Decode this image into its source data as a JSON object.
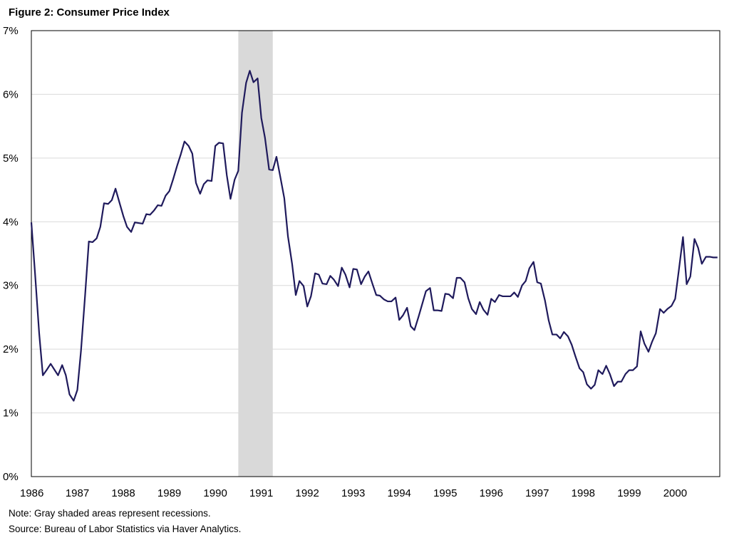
{
  "chart_data": {
    "type": "line",
    "title": "Figure 2: Consumer Price Index",
    "xlabel": "",
    "ylabel": "",
    "x_ticks": [
      "1986",
      "1987",
      "1988",
      "1989",
      "1990",
      "1991",
      "1992",
      "1993",
      "1994",
      "1995",
      "1996",
      "1997",
      "1998",
      "1999",
      "2000"
    ],
    "y_ticks": [
      "0%",
      "1%",
      "2%",
      "3%",
      "4%",
      "5%",
      "6%",
      "7%"
    ],
    "xlim": [
      1986.0,
      2000.97
    ],
    "ylim": [
      0,
      7
    ],
    "grid": true,
    "recessions": [
      {
        "start": 1990.5,
        "end": 1991.25
      }
    ],
    "series": [
      {
        "color": "#1f1a5c",
        "x": [
          1986.0,
          1986.08,
          1986.17,
          1986.25,
          1986.33,
          1986.42,
          1986.5,
          1986.58,
          1986.67,
          1986.75,
          1986.83,
          1986.92,
          1987.0,
          1987.08,
          1987.17,
          1987.25,
          1987.33,
          1987.42,
          1987.5,
          1987.58,
          1987.67,
          1987.75,
          1987.83,
          1987.92,
          1988.0,
          1988.08,
          1988.17,
          1988.25,
          1988.33,
          1988.42,
          1988.5,
          1988.58,
          1988.67,
          1988.75,
          1988.83,
          1988.92,
          1989.0,
          1989.08,
          1989.17,
          1989.25,
          1989.33,
          1989.42,
          1989.5,
          1989.58,
          1989.67,
          1989.75,
          1989.83,
          1989.92,
          1990.0,
          1990.08,
          1990.17,
          1990.25,
          1990.33,
          1990.42,
          1990.5,
          1990.58,
          1990.67,
          1990.75,
          1990.83,
          1990.92,
          1991.0,
          1991.08,
          1991.17,
          1991.25,
          1991.33,
          1991.42,
          1991.5,
          1991.58,
          1991.67,
          1991.75,
          1991.83,
          1991.92,
          1992.0,
          1992.08,
          1992.17,
          1992.25,
          1992.33,
          1992.42,
          1992.5,
          1992.58,
          1992.67,
          1992.75,
          1992.83,
          1992.92,
          1993.0,
          1993.08,
          1993.17,
          1993.25,
          1993.33,
          1993.42,
          1993.5,
          1993.58,
          1993.67,
          1993.75,
          1993.83,
          1993.92,
          1994.0,
          1994.08,
          1994.17,
          1994.25,
          1994.33,
          1994.42,
          1994.5,
          1994.58,
          1994.67,
          1994.75,
          1994.83,
          1994.92,
          1995.0,
          1995.08,
          1995.17,
          1995.25,
          1995.33,
          1995.42,
          1995.5,
          1995.58,
          1995.67,
          1995.75,
          1995.83,
          1995.92,
          1996.0,
          1996.08,
          1996.17,
          1996.25,
          1996.33,
          1996.42,
          1996.5,
          1996.58,
          1996.67,
          1996.75,
          1996.83,
          1996.92,
          1997.0,
          1997.08,
          1997.17,
          1997.25,
          1997.33,
          1997.42,
          1997.5,
          1997.58,
          1997.67,
          1997.75,
          1997.83,
          1997.92,
          1998.0,
          1998.08,
          1998.17,
          1998.25,
          1998.33,
          1998.42,
          1998.5,
          1998.58,
          1998.67,
          1998.75,
          1998.83,
          1998.92,
          1999.0,
          1999.08,
          1999.17,
          1999.25,
          1999.33,
          1999.42,
          1999.5,
          1999.58,
          1999.67,
          1999.75,
          1999.83,
          1999.92,
          2000.0,
          2000.08,
          2000.17,
          2000.25,
          2000.33,
          2000.42,
          2000.5,
          2000.58,
          2000.67,
          2000.75,
          2000.83,
          2000.92
        ],
        "values": [
          3.99,
          3.19,
          2.25,
          1.59,
          1.67,
          1.77,
          1.68,
          1.59,
          1.75,
          1.59,
          1.29,
          1.19,
          1.36,
          1.98,
          2.86,
          3.69,
          3.68,
          3.74,
          3.92,
          4.29,
          4.28,
          4.34,
          4.52,
          4.29,
          4.09,
          3.92,
          3.84,
          3.99,
          3.98,
          3.97,
          4.12,
          4.11,
          4.18,
          4.26,
          4.25,
          4.41,
          4.48,
          4.66,
          4.88,
          5.06,
          5.26,
          5.19,
          5.07,
          4.61,
          4.44,
          4.59,
          4.65,
          4.64,
          5.19,
          5.24,
          5.23,
          4.73,
          4.36,
          4.66,
          4.8,
          5.71,
          6.18,
          6.37,
          6.19,
          6.25,
          5.63,
          5.32,
          4.82,
          4.81,
          5.02,
          4.68,
          4.37,
          3.77,
          3.34,
          2.85,
          3.07,
          2.99,
          2.67,
          2.83,
          3.19,
          3.17,
          3.03,
          3.02,
          3.15,
          3.09,
          2.99,
          3.28,
          3.17,
          2.97,
          3.26,
          3.25,
          3.02,
          3.14,
          3.22,
          3.02,
          2.85,
          2.84,
          2.78,
          2.75,
          2.75,
          2.81,
          2.46,
          2.53,
          2.65,
          2.36,
          2.3,
          2.51,
          2.71,
          2.91,
          2.96,
          2.61,
          2.61,
          2.6,
          2.87,
          2.86,
          2.8,
          3.12,
          3.12,
          3.05,
          2.8,
          2.63,
          2.55,
          2.74,
          2.62,
          2.54,
          2.79,
          2.74,
          2.85,
          2.83,
          2.83,
          2.83,
          2.89,
          2.82,
          3.0,
          3.07,
          3.27,
          3.37,
          3.05,
          3.03,
          2.76,
          2.45,
          2.23,
          2.23,
          2.17,
          2.27,
          2.2,
          2.07,
          1.89,
          1.7,
          1.64,
          1.45,
          1.38,
          1.44,
          1.67,
          1.61,
          1.74,
          1.61,
          1.42,
          1.49,
          1.49,
          1.61,
          1.67,
          1.67,
          1.73,
          2.28,
          2.09,
          1.96,
          2.12,
          2.25,
          2.63,
          2.57,
          2.63,
          2.68,
          2.79,
          3.24,
          3.76,
          3.02,
          3.14,
          3.73,
          3.59,
          3.34,
          3.45,
          3.45,
          3.44,
          3.44
        ]
      }
    ],
    "notes": [
      "Note: Gray shaded areas represent recessions.",
      "Source: Bureau of Labor Statistics via Haver Analytics."
    ]
  }
}
